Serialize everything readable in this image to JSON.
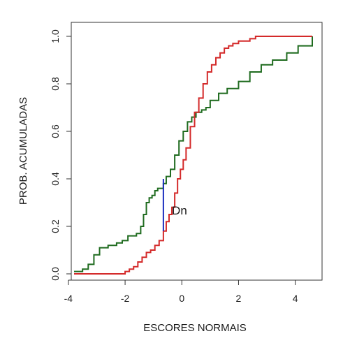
{
  "chart_data": {
    "type": "line",
    "title": "",
    "xlabel": "ESCORES NORMAIS",
    "ylabel": "PROB. ACUMULADAS",
    "xlim": [
      -4,
      4.7
    ],
    "ylim": [
      0,
      1
    ],
    "xticks": [
      -4,
      -2,
      0,
      2,
      4
    ],
    "yticks": [
      0.0,
      0.2,
      0.4,
      0.6,
      0.8,
      1.0
    ],
    "xtick_labels": [
      "-4",
      "-2",
      "0",
      "2",
      "4"
    ],
    "ytick_labels": [
      "0.0",
      "0.2",
      "0.4",
      "0.6",
      "0.8",
      "1.0"
    ],
    "grid": false,
    "series": [
      {
        "color": "#1f6b1f",
        "x": [
          -3.8,
          -3.5,
          -3.3,
          -3.1,
          -2.9,
          -2.6,
          -2.3,
          -2.1,
          -2.0,
          -1.9,
          -1.6,
          -1.45,
          -1.35,
          -1.25,
          -1.15,
          -1.05,
          -0.95,
          -0.85,
          -0.75,
          -0.65,
          -0.55,
          -0.4,
          -0.25,
          -0.1,
          0.05,
          0.2,
          0.35,
          0.5,
          0.6,
          0.7,
          0.85,
          1.0,
          1.3,
          1.6,
          2.0,
          2.4,
          2.8,
          3.2,
          3.7,
          4.1,
          4.6
        ],
        "y": [
          0.01,
          0.02,
          0.04,
          0.08,
          0.11,
          0.12,
          0.13,
          0.14,
          0.14,
          0.16,
          0.17,
          0.2,
          0.25,
          0.3,
          0.32,
          0.33,
          0.35,
          0.36,
          0.36,
          0.38,
          0.41,
          0.44,
          0.5,
          0.56,
          0.6,
          0.64,
          0.66,
          0.68,
          0.68,
          0.69,
          0.7,
          0.73,
          0.76,
          0.78,
          0.81,
          0.85,
          0.88,
          0.9,
          0.93,
          0.96,
          1.0
        ]
      },
      {
        "color": "#d42a2a",
        "x": [
          -3.8,
          -2.2,
          -2.0,
          -1.85,
          -1.7,
          -1.55,
          -1.4,
          -1.25,
          -1.1,
          -0.95,
          -0.8,
          -0.65,
          -0.55,
          -0.45,
          -0.35,
          -0.25,
          -0.15,
          -0.05,
          0.05,
          0.15,
          0.3,
          0.45,
          0.6,
          0.75,
          0.9,
          1.05,
          1.2,
          1.35,
          1.5,
          1.65,
          1.8,
          2.0,
          2.2,
          2.4,
          2.6,
          2.8,
          3.0,
          4.6
        ],
        "y": [
          0.0,
          0.0,
          0.01,
          0.02,
          0.03,
          0.05,
          0.07,
          0.09,
          0.1,
          0.12,
          0.14,
          0.18,
          0.22,
          0.25,
          0.28,
          0.34,
          0.4,
          0.44,
          0.48,
          0.53,
          0.62,
          0.68,
          0.74,
          0.8,
          0.85,
          0.88,
          0.91,
          0.93,
          0.95,
          0.96,
          0.97,
          0.98,
          0.98,
          0.99,
          1.0,
          1.0,
          1.0,
          1.0
        ]
      }
    ],
    "annotations": [
      {
        "text": "Dn",
        "x": -0.35,
        "y": 0.25,
        "color": "#1a1a1a"
      }
    ],
    "segments": [
      {
        "name": "dn-segment",
        "x": -0.65,
        "y1": 0.18,
        "y2": 0.4,
        "color": "#1a2dbf"
      }
    ]
  }
}
